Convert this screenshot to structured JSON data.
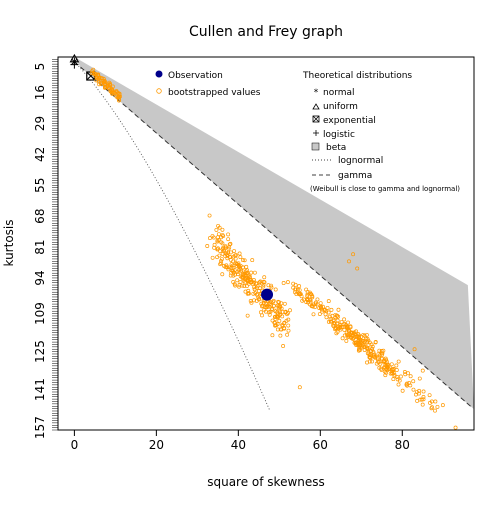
{
  "chart_data": {
    "type": "scatter",
    "title": "Cullen and Frey graph",
    "xlabel": "square of skewness",
    "ylabel": "kurtosis",
    "xlim": [
      -4,
      97.5
    ],
    "ylim": [
      158,
      1
    ],
    "x_ticks": [
      0,
      20,
      40,
      60,
      80
    ],
    "y_ticks": [
      5,
      16,
      29,
      42,
      55,
      68,
      81,
      94,
      109,
      125,
      141,
      157
    ],
    "colors": {
      "observation": "#00008b",
      "bootstrap": "#ff9900",
      "beta": "#c8c8c8",
      "axis": "#000000"
    },
    "observation": {
      "x": 47,
      "y": 101,
      "name": "Observation"
    },
    "theoretical": {
      "normal": {
        "x": 0,
        "y": 3
      },
      "uniform": {
        "x": 0,
        "y": 1.8
      },
      "exponential": {
        "x": 4,
        "y": 9
      },
      "logistic": {
        "x": 0,
        "y": 4.2
      }
    },
    "bootstrap_clusters": [
      {
        "center": [
          7.5,
          12.5
        ],
        "slope": 1.5,
        "halfspan": 3.5,
        "spread": 1.2,
        "n": 70
      },
      {
        "center": [
          43,
          96
        ],
        "slope": 1.85,
        "halfspan": 8.5,
        "spread": 4.0,
        "n": 300
      },
      {
        "center": [
          66,
          116
        ],
        "slope": 1.5,
        "halfspan": 12,
        "spread": 2.2,
        "n": 230
      },
      {
        "center": [
          75,
          128
        ],
        "slope": 1.5,
        "halfspan": 12,
        "spread": 2.5,
        "n": 90
      }
    ],
    "bootstrap_outliers": [
      [
        93,
        157
      ],
      [
        34,
        77
      ],
      [
        68,
        84
      ],
      [
        67,
        87
      ],
      [
        83,
        124
      ],
      [
        85,
        133
      ],
      [
        69,
        90
      ],
      [
        55,
        140
      ]
    ],
    "legend": {
      "obs_label": "Observation",
      "boot_label": "bootstrapped values",
      "theor_title": "Theoretical distributions",
      "items": [
        "normal",
        "uniform",
        "exponential",
        "logistic",
        "beta",
        "lognormal",
        "gamma"
      ],
      "note": "(Weibull is close to gamma and lognormal)"
    }
  }
}
